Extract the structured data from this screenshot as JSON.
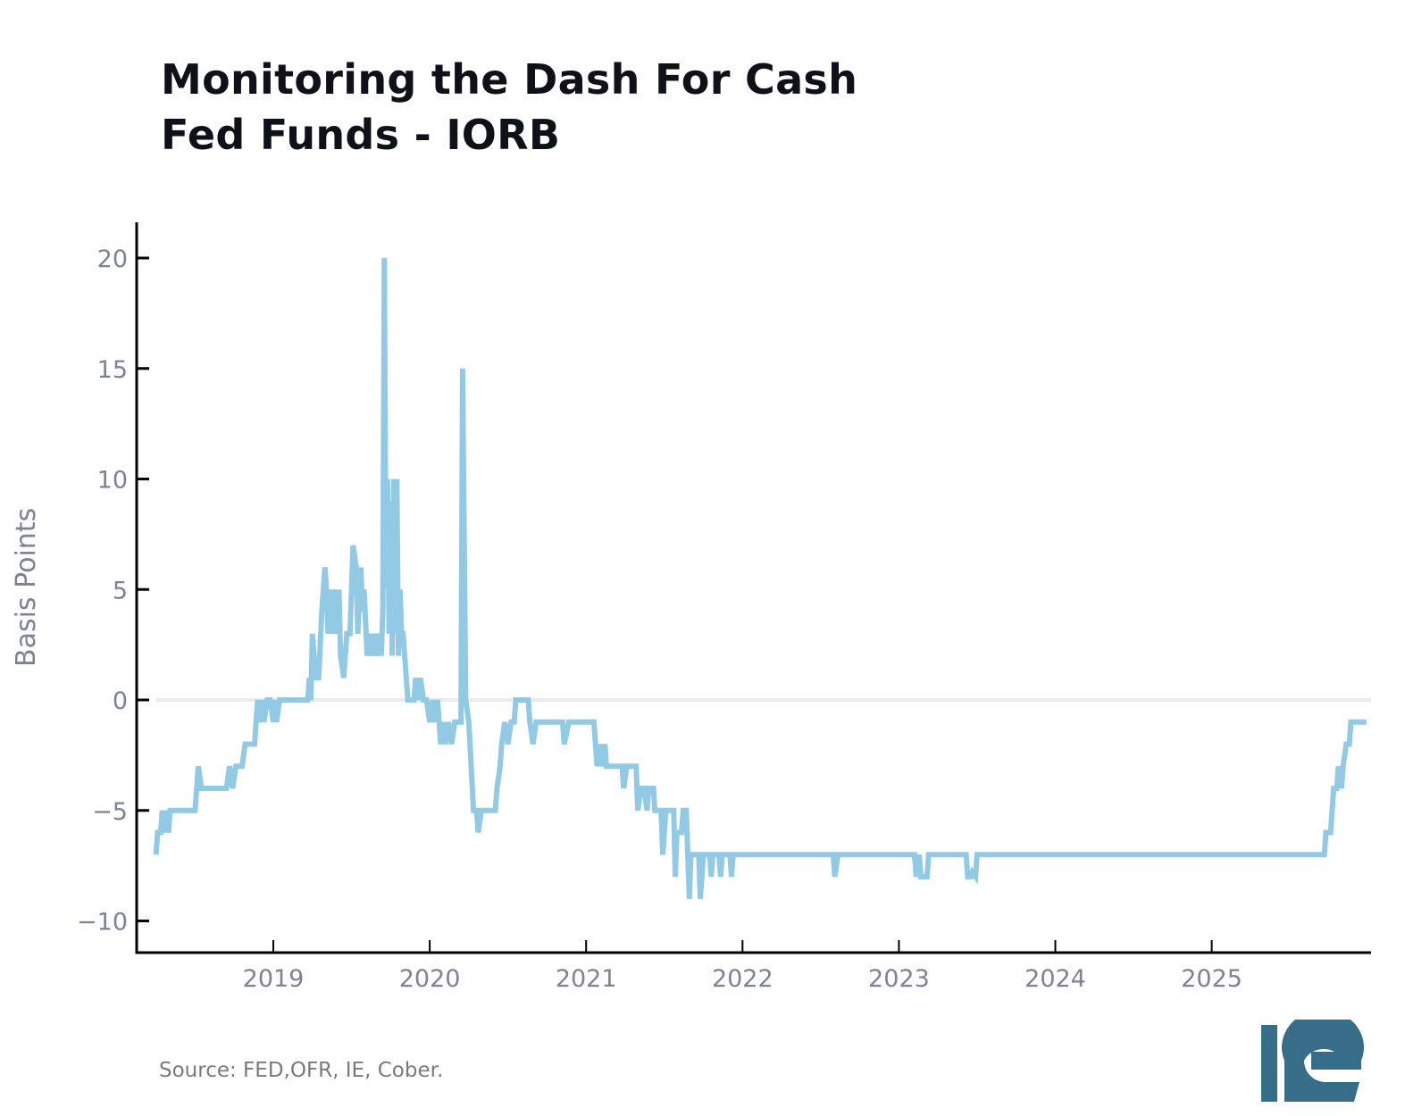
{
  "title": {
    "line1": "Monitoring the Dash For Cash",
    "line2": "Fed Funds - IORB"
  },
  "source": "Source: FED,OFR, IE, Cober.",
  "logo": {
    "text": "IE",
    "color": "#376d88"
  },
  "colors": {
    "series": "#92cae6",
    "zero_line": "#ebebeb",
    "axis": "#000000",
    "tick_label": "#7d8294",
    "title": "#0f1119"
  },
  "chart_data": {
    "type": "line",
    "title": "Monitoring the Dash For Cash — Fed Funds - IORB",
    "xlabel": "",
    "ylabel": "Basis Points",
    "xlim": [
      2018.22,
      2025.99
    ],
    "ylim": [
      -11.5,
      21.5
    ],
    "xticks": [
      2019,
      2020,
      2021,
      2022,
      2023,
      2024,
      2025
    ],
    "xtick_labels": [
      "2019",
      "2020",
      "2021",
      "2022",
      "2023",
      "2024",
      "2025"
    ],
    "yticks": [
      -10,
      -5,
      0,
      5,
      10,
      15,
      20
    ],
    "ytick_labels": [
      "−10",
      "−5",
      "0",
      "5",
      "10",
      "15",
      "20"
    ],
    "zero_line": true,
    "grid": false,
    "legend": "none",
    "series": [
      {
        "name": "Fed Funds - IORB",
        "points": [
          [
            2018.25,
            -7
          ],
          [
            2018.26,
            -6
          ],
          [
            2018.28,
            -6
          ],
          [
            2018.29,
            -5
          ],
          [
            2018.31,
            -6
          ],
          [
            2018.32,
            -5
          ],
          [
            2018.33,
            -6
          ],
          [
            2018.34,
            -5
          ],
          [
            2018.5,
            -5
          ],
          [
            2018.52,
            -3
          ],
          [
            2018.54,
            -4
          ],
          [
            2018.7,
            -4
          ],
          [
            2018.72,
            -3
          ],
          [
            2018.74,
            -4
          ],
          [
            2018.76,
            -3
          ],
          [
            2018.78,
            -3
          ],
          [
            2018.8,
            -3
          ],
          [
            2018.82,
            -2
          ],
          [
            2018.88,
            -2
          ],
          [
            2018.89,
            -1
          ],
          [
            2018.9,
            0
          ],
          [
            2018.92,
            -1
          ],
          [
            2018.93,
            0
          ],
          [
            2018.94,
            -1
          ],
          [
            2018.96,
            0
          ],
          [
            2018.98,
            0
          ],
          [
            2019.0,
            -1
          ],
          [
            2019.01,
            0
          ],
          [
            2019.02,
            -1
          ],
          [
            2019.04,
            0
          ],
          [
            2019.22,
            0
          ],
          [
            2019.23,
            1
          ],
          [
            2019.24,
            0
          ],
          [
            2019.25,
            3
          ],
          [
            2019.27,
            1
          ],
          [
            2019.29,
            1
          ],
          [
            2019.31,
            4
          ],
          [
            2019.32,
            5
          ],
          [
            2019.33,
            6
          ],
          [
            2019.34,
            5
          ],
          [
            2019.35,
            3
          ],
          [
            2019.37,
            5
          ],
          [
            2019.38,
            3
          ],
          [
            2019.4,
            5
          ],
          [
            2019.41,
            3
          ],
          [
            2019.42,
            5
          ],
          [
            2019.43,
            2
          ],
          [
            2019.45,
            1
          ],
          [
            2019.47,
            3
          ],
          [
            2019.49,
            3
          ],
          [
            2019.5,
            5
          ],
          [
            2019.51,
            7
          ],
          [
            2019.53,
            6
          ],
          [
            2019.54,
            3
          ],
          [
            2019.56,
            6
          ],
          [
            2019.57,
            4
          ],
          [
            2019.58,
            5
          ],
          [
            2019.6,
            2
          ],
          [
            2019.62,
            3
          ],
          [
            2019.63,
            2
          ],
          [
            2019.65,
            3
          ],
          [
            2019.66,
            2
          ],
          [
            2019.68,
            3
          ],
          [
            2019.69,
            2
          ],
          [
            2019.7,
            4
          ],
          [
            2019.71,
            20
          ],
          [
            2019.72,
            5
          ],
          [
            2019.73,
            10
          ],
          [
            2019.74,
            3
          ],
          [
            2019.75,
            9
          ],
          [
            2019.76,
            2
          ],
          [
            2019.77,
            10
          ],
          [
            2019.78,
            3
          ],
          [
            2019.79,
            10
          ],
          [
            2019.8,
            2
          ],
          [
            2019.81,
            5
          ],
          [
            2019.82,
            3
          ],
          [
            2019.83,
            3
          ],
          [
            2019.84,
            2
          ],
          [
            2019.86,
            0
          ],
          [
            2019.9,
            0
          ],
          [
            2019.91,
            1
          ],
          [
            2019.93,
            0
          ],
          [
            2019.94,
            1
          ],
          [
            2019.96,
            0
          ],
          [
            2019.98,
            0
          ],
          [
            2020.0,
            -1
          ],
          [
            2020.02,
            0
          ],
          [
            2020.03,
            -1
          ],
          [
            2020.05,
            0
          ],
          [
            2020.07,
            -2
          ],
          [
            2020.09,
            -1
          ],
          [
            2020.1,
            -2
          ],
          [
            2020.12,
            -1
          ],
          [
            2020.14,
            -2
          ],
          [
            2020.16,
            -1
          ],
          [
            2020.2,
            -1
          ],
          [
            2020.21,
            15
          ],
          [
            2020.23,
            0
          ],
          [
            2020.25,
            -1
          ],
          [
            2020.28,
            -5
          ],
          [
            2020.3,
            -5
          ],
          [
            2020.31,
            -6
          ],
          [
            2020.33,
            -5
          ],
          [
            2020.42,
            -5
          ],
          [
            2020.43,
            -4
          ],
          [
            2020.45,
            -3
          ],
          [
            2020.46,
            -2
          ],
          [
            2020.48,
            -1
          ],
          [
            2020.5,
            -2
          ],
          [
            2020.52,
            -1
          ],
          [
            2020.54,
            -1
          ],
          [
            2020.55,
            0
          ],
          [
            2020.63,
            0
          ],
          [
            2020.64,
            -1
          ],
          [
            2020.66,
            -2
          ],
          [
            2020.68,
            -1
          ],
          [
            2020.85,
            -1
          ],
          [
            2020.86,
            -2
          ],
          [
            2020.89,
            -1
          ],
          [
            2021.05,
            -1
          ],
          [
            2021.06,
            -2
          ],
          [
            2021.07,
            -3
          ],
          [
            2021.09,
            -2
          ],
          [
            2021.1,
            -3
          ],
          [
            2021.12,
            -2
          ],
          [
            2021.13,
            -3
          ],
          [
            2021.23,
            -3
          ],
          [
            2021.24,
            -4
          ],
          [
            2021.26,
            -3
          ],
          [
            2021.32,
            -3
          ],
          [
            2021.33,
            -5
          ],
          [
            2021.35,
            -4
          ],
          [
            2021.37,
            -4
          ],
          [
            2021.39,
            -5
          ],
          [
            2021.4,
            -4
          ],
          [
            2021.43,
            -4
          ],
          [
            2021.44,
            -5
          ],
          [
            2021.48,
            -5
          ],
          [
            2021.49,
            -7
          ],
          [
            2021.51,
            -5
          ],
          [
            2021.56,
            -5
          ],
          [
            2021.57,
            -8
          ],
          [
            2021.58,
            -6
          ],
          [
            2021.61,
            -6
          ],
          [
            2021.62,
            -5
          ],
          [
            2021.64,
            -5
          ],
          [
            2021.65,
            -7
          ],
          [
            2021.66,
            -9
          ],
          [
            2021.67,
            -7
          ],
          [
            2021.72,
            -7
          ],
          [
            2021.73,
            -9
          ],
          [
            2021.75,
            -7
          ],
          [
            2021.79,
            -7
          ],
          [
            2021.8,
            -8
          ],
          [
            2021.81,
            -7
          ],
          [
            2021.85,
            -7
          ],
          [
            2021.86,
            -8
          ],
          [
            2021.87,
            -7
          ],
          [
            2021.92,
            -7
          ],
          [
            2021.93,
            -8
          ],
          [
            2021.94,
            -7
          ],
          [
            2022.58,
            -7
          ],
          [
            2022.59,
            -8
          ],
          [
            2022.61,
            -7
          ],
          [
            2023.1,
            -7
          ],
          [
            2023.11,
            -8
          ],
          [
            2023.13,
            -7
          ],
          [
            2023.14,
            -8
          ],
          [
            2023.18,
            -8
          ],
          [
            2023.19,
            -7
          ],
          [
            2023.43,
            -7
          ],
          [
            2023.44,
            -8
          ],
          [
            2023.46,
            -8
          ],
          [
            2023.47,
            -7.8
          ],
          [
            2023.49,
            -8
          ],
          [
            2023.5,
            -7
          ],
          [
            2025.72,
            -7
          ],
          [
            2025.73,
            -6
          ],
          [
            2025.76,
            -6
          ],
          [
            2025.77,
            -5
          ],
          [
            2025.78,
            -4
          ],
          [
            2025.8,
            -4
          ],
          [
            2025.81,
            -3
          ],
          [
            2025.83,
            -4
          ],
          [
            2025.84,
            -3
          ],
          [
            2025.86,
            -2
          ],
          [
            2025.88,
            -2
          ],
          [
            2025.89,
            -1
          ],
          [
            2025.99,
            -1
          ]
        ]
      }
    ]
  }
}
